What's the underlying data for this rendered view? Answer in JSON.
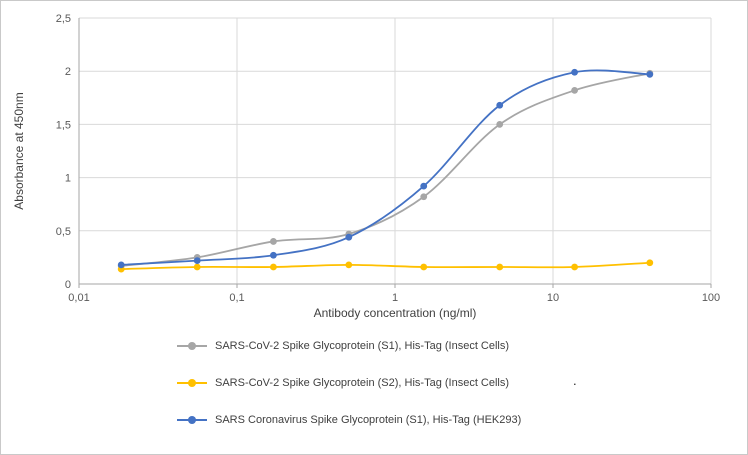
{
  "chart_data": {
    "type": "line",
    "title": "",
    "xlabel": "Antibody concentration (ng/ml)",
    "ylabel": "Absorbance at 450nm",
    "x_scale": "log",
    "xlim": [
      0.01,
      100
    ],
    "ylim": [
      0,
      2.5
    ],
    "grid": true,
    "legend_position": "bottom",
    "x_ticks": [
      0.01,
      0.1,
      1,
      10,
      100
    ],
    "x_tick_labels": [
      "0,01",
      "0,1",
      "1",
      "10",
      "100"
    ],
    "y_ticks": [
      0,
      0.5,
      1,
      1.5,
      2,
      2.5
    ],
    "y_tick_labels": [
      "0",
      "0,5",
      "1",
      "1,5",
      "2",
      "2,5"
    ],
    "x": [
      0.0185,
      0.056,
      0.17,
      0.51,
      1.52,
      4.6,
      13.7,
      41
    ],
    "series": [
      {
        "name": "SARS-CoV-2 Spike Glycoprotein (S1), His-Tag (Insect Cells)",
        "color": "#a6a6a6",
        "values": [
          0.17,
          0.25,
          0.4,
          0.47,
          0.82,
          1.5,
          1.82,
          1.98
        ]
      },
      {
        "name": "SARS-CoV-2 Spike Glycoprotein (S2), His-Tag (Insect Cells)",
        "color": "#ffc000",
        "values": [
          0.14,
          0.16,
          0.16,
          0.18,
          0.16,
          0.16,
          0.16,
          0.2
        ]
      },
      {
        "name": "SARS Coronavirus Spike Glycoprotein (S1), His-Tag (HEK293)",
        "color": "#4472c4",
        "values": [
          0.18,
          0.22,
          0.27,
          0.44,
          0.92,
          1.68,
          1.99,
          1.97
        ]
      }
    ],
    "axis_color": "#a6a6a6",
    "grid_color": "#d9d9d9"
  },
  "misc": {
    "stray_dot": "."
  }
}
